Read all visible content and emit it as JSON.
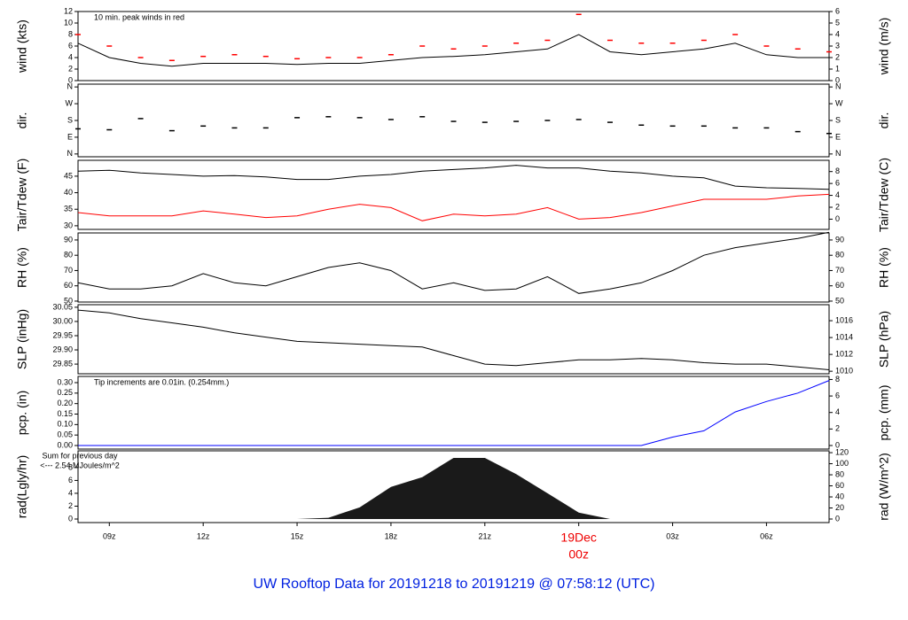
{
  "title": "UW Rooftop Data for 20191218  to  20191219 @ 07:58:12  (UTC)",
  "chart_data": [
    {
      "type": "line",
      "ylabel": "wind (kts)",
      "y2label": "wind (m/s)",
      "annotation": "10 min. peak winds in red",
      "xlim": [
        8,
        32
      ],
      "ylim": [
        0,
        12
      ],
      "yticks": [
        0,
        2,
        4,
        6,
        8,
        10,
        12
      ],
      "y2lim": [
        0,
        6
      ],
      "y2ticks": [
        0,
        1,
        2,
        3,
        4,
        5,
        6
      ],
      "x": [
        8,
        9,
        10,
        11,
        12,
        13,
        14,
        15,
        16,
        17,
        18,
        19,
        20,
        21,
        22,
        23,
        24,
        25,
        26,
        27,
        28,
        29,
        30,
        31,
        32
      ],
      "series": [
        {
          "color": "#000000",
          "style": "line",
          "values": [
            6.5,
            4,
            3,
            2.5,
            3,
            3,
            3,
            2.8,
            3,
            3,
            3.5,
            4,
            4.2,
            4.5,
            5,
            5.5,
            8,
            5,
            4.5,
            5,
            5.5,
            6.5,
            4.5,
            4,
            4
          ]
        },
        {
          "color": "#ff0000",
          "style": "dash",
          "values": [
            8,
            6,
            4,
            3.5,
            4.2,
            4.5,
            4.2,
            3.8,
            4,
            4,
            4.5,
            6,
            5.5,
            6,
            6.5,
            7,
            11.5,
            7,
            6.5,
            6.5,
            7,
            8,
            6,
            5.5,
            5
          ]
        }
      ]
    },
    {
      "type": "line",
      "ylabel": "dir.",
      "y2label": "dir.",
      "xlim": [
        8,
        32
      ],
      "ylim": [
        -15,
        375
      ],
      "yticks": [
        {
          "value": 0,
          "label": "N"
        },
        {
          "value": 90,
          "label": "E"
        },
        {
          "value": 180,
          "label": "S"
        },
        {
          "value": 270,
          "label": "W"
        },
        {
          "value": 360,
          "label": "N"
        }
      ],
      "y2lim": [
        -15,
        375
      ],
      "y2ticks": [
        {
          "value": 0,
          "label": "N"
        },
        {
          "value": 90,
          "label": "E"
        },
        {
          "value": 180,
          "label": "S"
        },
        {
          "value": 270,
          "label": "W"
        },
        {
          "value": 360,
          "label": "N"
        }
      ],
      "x": [
        8,
        9,
        10,
        11,
        12,
        13,
        14,
        15,
        16,
        17,
        18,
        19,
        20,
        21,
        22,
        23,
        24,
        25,
        26,
        27,
        28,
        29,
        30,
        31,
        32
      ],
      "series": [
        {
          "color": "#000000",
          "style": "dash",
          "values": [
            135,
            130,
            190,
            125,
            150,
            140,
            140,
            195,
            200,
            195,
            185,
            200,
            175,
            170,
            175,
            180,
            185,
            170,
            155,
            150,
            150,
            140,
            140,
            120,
            110
          ]
        }
      ]
    },
    {
      "type": "line",
      "ylabel": "Tair/Tdew (F)",
      "y2label": "Tair/Tdew (C)",
      "xlim": [
        8,
        32
      ],
      "ylim": [
        28.9,
        49.8
      ],
      "yticks": [
        30,
        35,
        40,
        45
      ],
      "y2lim": [
        -1.72,
        9.89
      ],
      "y2ticks": [
        0,
        2,
        4,
        6,
        8
      ],
      "x": [
        8,
        9,
        10,
        11,
        12,
        13,
        14,
        15,
        16,
        17,
        18,
        19,
        20,
        21,
        22,
        23,
        24,
        25,
        26,
        27,
        28,
        29,
        30,
        31,
        32
      ],
      "series": [
        {
          "color": "#000000",
          "style": "line",
          "values": [
            46.5,
            46.8,
            46,
            45.5,
            45,
            45.2,
            44.8,
            44,
            44,
            45,
            45.5,
            46.5,
            47,
            47.5,
            48.3,
            47.5,
            47.5,
            46.5,
            46,
            45,
            44.5,
            42,
            41.5,
            41.3,
            41
          ]
        },
        {
          "color": "#ff0000",
          "style": "line",
          "values": [
            34,
            33,
            33,
            33,
            34.5,
            33.5,
            32.5,
            33,
            35,
            36.5,
            35.5,
            31.5,
            33.5,
            33,
            33.5,
            35.5,
            32,
            32.5,
            34,
            36,
            38,
            38,
            38,
            39,
            39.5
          ]
        }
      ]
    },
    {
      "type": "line",
      "ylabel": "RH (%)",
      "y2label": "RH (%)",
      "xlim": [
        8,
        32
      ],
      "ylim": [
        49.4,
        94.6
      ],
      "yticks": [
        50,
        60,
        70,
        80,
        90
      ],
      "y2lim": [
        49.4,
        94.6
      ],
      "y2ticks": [
        50,
        60,
        70,
        80,
        90
      ],
      "x": [
        8,
        9,
        10,
        11,
        12,
        13,
        14,
        15,
        16,
        17,
        18,
        19,
        20,
        21,
        22,
        23,
        24,
        25,
        26,
        27,
        28,
        29,
        30,
        31,
        32
      ],
      "series": [
        {
          "color": "#000000",
          "style": "line",
          "values": [
            62,
            58,
            58,
            60,
            68,
            62,
            60,
            66,
            72,
            75,
            70,
            58,
            62,
            57,
            58,
            66,
            55,
            58,
            62,
            70,
            80,
            85,
            88,
            91,
            95
          ]
        }
      ]
    },
    {
      "type": "line",
      "ylabel": "SLP (inHg)",
      "y2label": "SLP (hPa)",
      "xlim": [
        8,
        32
      ],
      "ylim": [
        29.816,
        30.059
      ],
      "yticks": [
        29.85,
        {
          "value": 29.9,
          "label": "29.90"
        },
        29.95,
        {
          "value": 30,
          "label": "30.00"
        },
        30.05
      ],
      "y2lim": [
        1009.7,
        1017.9
      ],
      "y2ticks": [
        1010,
        1012,
        1014,
        1016
      ],
      "x": [
        8,
        9,
        10,
        11,
        12,
        13,
        14,
        15,
        16,
        17,
        18,
        19,
        20,
        21,
        22,
        23,
        24,
        25,
        26,
        27,
        28,
        29,
        30,
        31,
        32
      ],
      "series": [
        {
          "color": "#000000",
          "style": "line",
          "values": [
            30.04,
            30.03,
            30.01,
            29.995,
            29.98,
            29.96,
            29.945,
            29.93,
            29.925,
            29.92,
            29.915,
            29.91,
            29.88,
            29.85,
            29.845,
            29.855,
            29.865,
            29.865,
            29.87,
            29.865,
            29.855,
            29.85,
            29.85,
            29.84,
            29.83
          ]
        }
      ]
    },
    {
      "type": "line",
      "ylabel": "pcp. (in)",
      "y2label": "pcp. (mm)",
      "annotation": "Tip increments are 0.01in. (0.254mm.)",
      "xlim": [
        8,
        32
      ],
      "ylim": [
        -0.0169,
        0.3296
      ],
      "yticks": [
        {
          "value": 0,
          "label": "0.00"
        },
        0.05,
        {
          "value": 0.1,
          "label": "0.10"
        },
        0.15,
        {
          "value": 0.2,
          "label": "0.20"
        },
        0.25,
        {
          "value": 0.3,
          "label": "0.30"
        }
      ],
      "y2lim": [
        -0.43,
        8.37
      ],
      "y2ticks": [
        0,
        2,
        4,
        6,
        8
      ],
      "x": [
        8,
        9,
        10,
        11,
        12,
        13,
        14,
        15,
        16,
        17,
        18,
        19,
        20,
        21,
        22,
        23,
        24,
        25,
        26,
        27,
        28,
        29,
        30,
        31,
        32
      ],
      "series": [
        {
          "color": "#0000ff",
          "style": "line",
          "values": [
            0,
            0,
            0,
            0,
            0,
            0,
            0,
            0,
            0,
            0,
            0,
            0,
            0,
            0,
            0,
            0,
            0,
            0,
            0,
            0.04,
            0.07,
            0.16,
            0.21,
            0.25,
            0.31
          ]
        }
      ]
    },
    {
      "type": "area",
      "ylabel": "rad(Lgly/hr)",
      "y2label": "rad (W/m^2)",
      "annotations": [
        "Sum for previous day",
        "<--- 2.54 MJoules/m^2"
      ],
      "xlim": [
        8,
        32
      ],
      "ylim": [
        -0.55,
        10.6
      ],
      "yticks": [
        0,
        2,
        4,
        6,
        8
      ],
      "y2lim": [
        -6.4,
        123.3
      ],
      "y2ticks": [
        0,
        20,
        40,
        60,
        80,
        100,
        120
      ],
      "xticks": [
        {
          "value": 9,
          "label": "09z"
        },
        {
          "value": 12,
          "label": "12z"
        },
        {
          "value": 15,
          "label": "15z"
        },
        {
          "value": 18,
          "label": "18z"
        },
        {
          "value": 21,
          "label": "21z"
        },
        {
          "value": 24,
          "label": "00z",
          "date": "19Dec"
        },
        {
          "value": 27,
          "label": "03z"
        },
        {
          "value": 30,
          "label": "06z"
        }
      ],
      "x": [
        8,
        9,
        10,
        11,
        12,
        13,
        14,
        15,
        16,
        17,
        18,
        19,
        20,
        21,
        22,
        23,
        24,
        25,
        26,
        27,
        28,
        29,
        30,
        31,
        32
      ],
      "series": [
        {
          "color": "#1a1a1a",
          "style": "area",
          "values": [
            0,
            0,
            0,
            0,
            0,
            0,
            0,
            0,
            0.2,
            1.8,
            5,
            6.5,
            9.5,
            9.5,
            7,
            4,
            1,
            0,
            0,
            0,
            0,
            0,
            0,
            0,
            0
          ]
        }
      ]
    }
  ]
}
